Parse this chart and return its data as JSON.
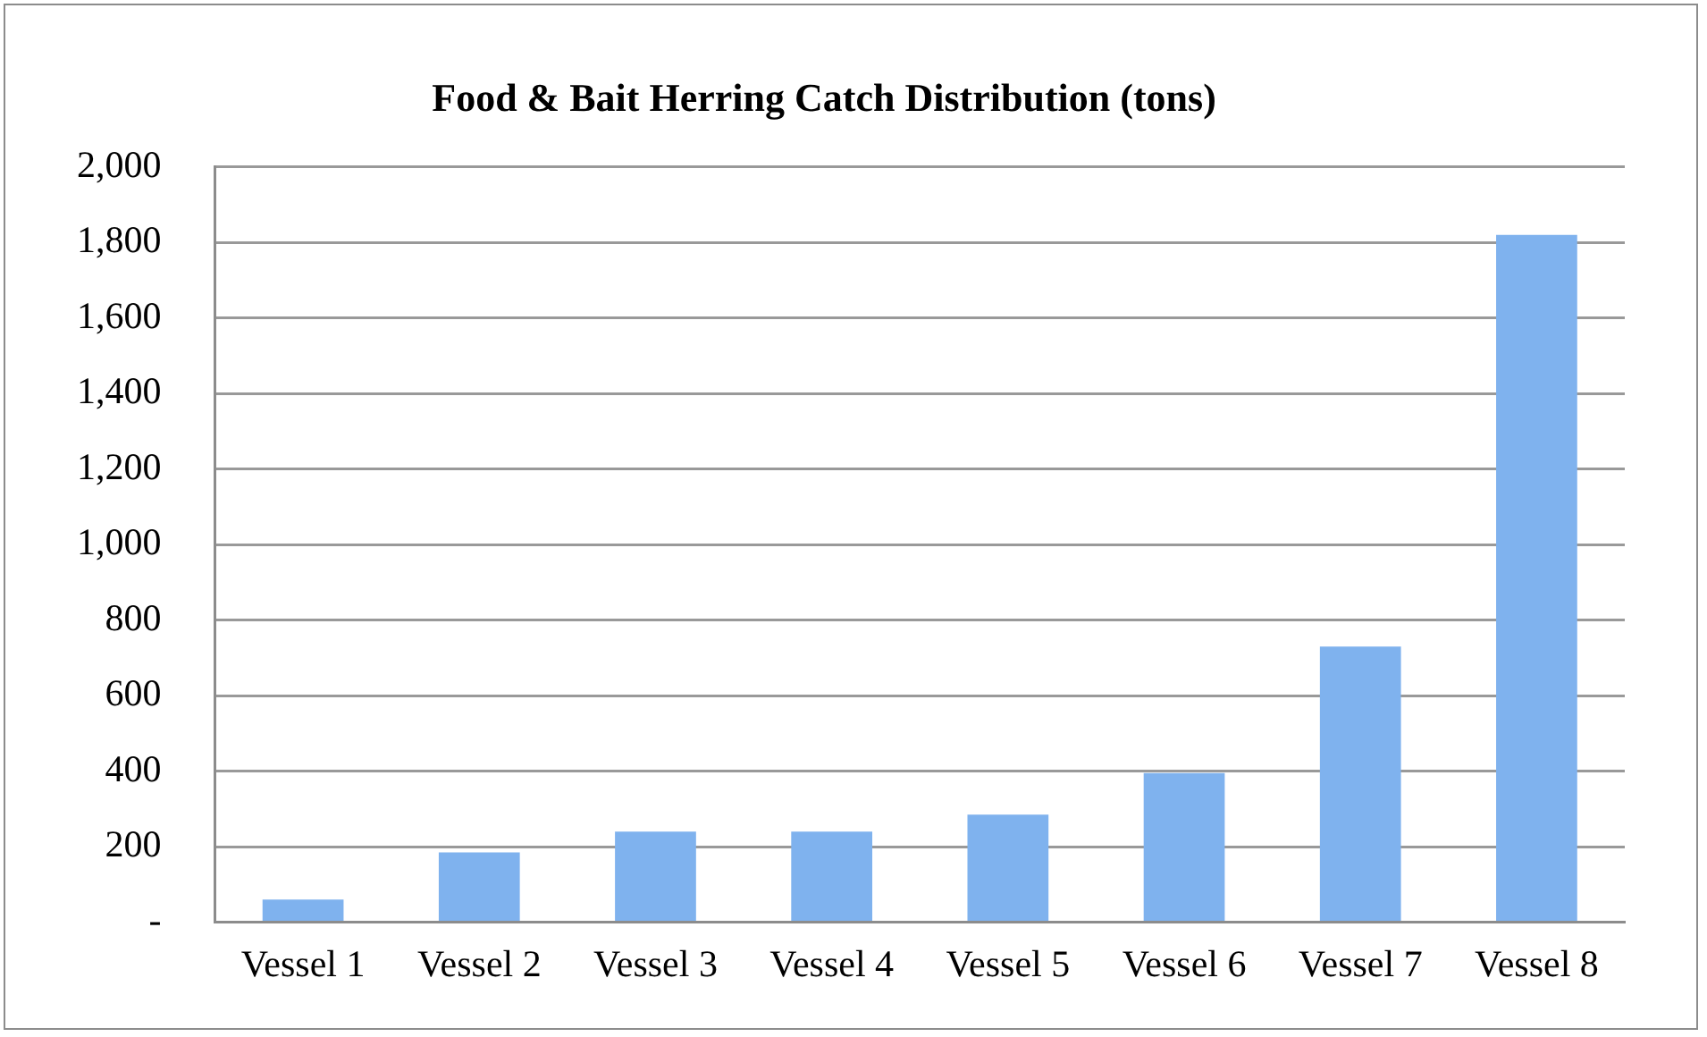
{
  "chart_data": {
    "type": "bar",
    "title": "Food & Bait Herring Catch Distribution (tons)",
    "categories": [
      "Vessel 1",
      "Vessel 2",
      "Vessel 3",
      "Vessel 4",
      "Vessel 5",
      "Vessel 6",
      "Vessel 7",
      "Vessel 8"
    ],
    "values": [
      60,
      185,
      240,
      240,
      285,
      395,
      730,
      1820
    ],
    "color": "#7fb2ee",
    "ylim": [
      0,
      2000
    ],
    "yticks": [
      {
        "value": 0,
        "label": "-"
      },
      {
        "value": 200,
        "label": "200"
      },
      {
        "value": 400,
        "label": "400"
      },
      {
        "value": 600,
        "label": "600"
      },
      {
        "value": 800,
        "label": "800"
      },
      {
        "value": 1000,
        "label": "1,000"
      },
      {
        "value": 1200,
        "label": "1,200"
      },
      {
        "value": 1400,
        "label": "1,400"
      },
      {
        "value": 1600,
        "label": "1,600"
      },
      {
        "value": 1800,
        "label": "1,800"
      },
      {
        "value": 2000,
        "label": "2,000"
      }
    ],
    "grid": "y",
    "legend": false
  }
}
